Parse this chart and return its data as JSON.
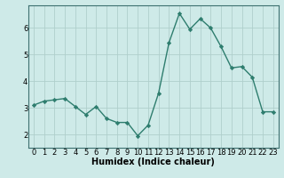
{
  "x": [
    0,
    1,
    2,
    3,
    4,
    5,
    6,
    7,
    8,
    9,
    10,
    11,
    12,
    13,
    14,
    15,
    16,
    17,
    18,
    19,
    20,
    21,
    22,
    23
  ],
  "y": [
    3.1,
    3.25,
    3.3,
    3.35,
    3.05,
    2.75,
    3.05,
    2.6,
    2.45,
    2.45,
    1.95,
    2.35,
    3.55,
    5.45,
    6.55,
    5.95,
    6.35,
    6.0,
    5.3,
    4.5,
    4.55,
    4.15,
    2.85,
    2.85
  ],
  "line_color": "#2e7d6e",
  "marker": "D",
  "markersize": 2.2,
  "linewidth": 1.0,
  "background_color": "#ceeae8",
  "grid_color": "#b0cfcc",
  "xlabel": "Humidex (Indice chaleur)",
  "xlabel_fontsize": 7,
  "tick_fontsize": 6,
  "xlim": [
    -0.5,
    23.5
  ],
  "ylim": [
    1.5,
    6.85
  ],
  "yticks": [
    2,
    3,
    4,
    5,
    6
  ],
  "xticks": [
    0,
    1,
    2,
    3,
    4,
    5,
    6,
    7,
    8,
    9,
    10,
    11,
    12,
    13,
    14,
    15,
    16,
    17,
    18,
    19,
    20,
    21,
    22,
    23
  ]
}
